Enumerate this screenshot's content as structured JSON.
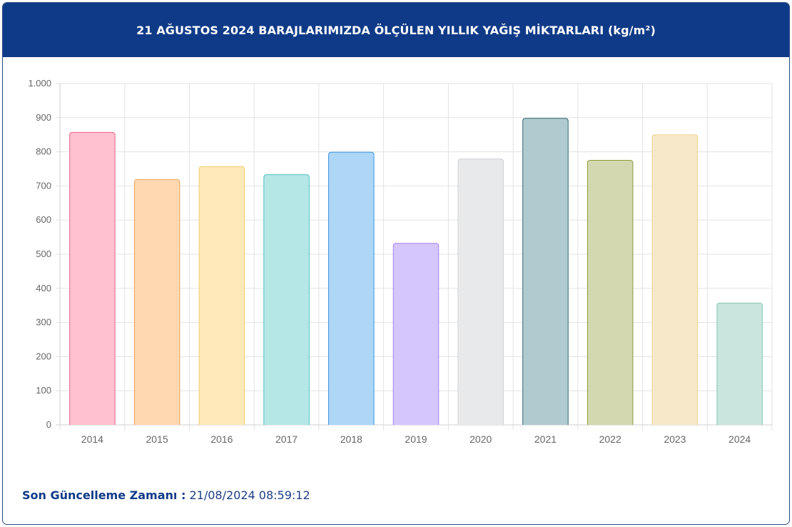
{
  "header": {
    "title": "21 AĞUSTOS 2024 BARAJLARIMIZDA ÖLÇÜLEN YILLIK YAĞIŞ MİKTARLARI (kg/m²)"
  },
  "footer": {
    "label": "Son Güncelleme Zamanı :",
    "value": "21/08/2024 08:59:12"
  },
  "chart_data": {
    "type": "bar",
    "title": "21 AĞUSTOS 2024 BARAJLARIMIZDA ÖLÇÜLEN YILLIK YAĞIŞ MİKTARLARI (kg/m²)",
    "categories": [
      "2014",
      "2015",
      "2016",
      "2017",
      "2018",
      "2019",
      "2020",
      "2021",
      "2022",
      "2023",
      "2024"
    ],
    "values": [
      857,
      719,
      757,
      733,
      799,
      532,
      779,
      898,
      775,
      850,
      357
    ],
    "ylim": [
      0,
      1000
    ],
    "yticks": [
      0,
      100,
      200,
      300,
      400,
      500,
      600,
      700,
      800,
      900,
      1000
    ],
    "ytick_labels": [
      "0",
      "100",
      "200",
      "300",
      "400",
      "500",
      "600",
      "700",
      "800",
      "900",
      "1.000"
    ],
    "grid": true,
    "legend": "none",
    "colors": {
      "fill": [
        "#ffc0cf",
        "#ffd7b0",
        "#ffe9bb",
        "#b6e7e7",
        "#aed6f7",
        "#d6c6fe",
        "#e8e9eb",
        "#b0cbd0",
        "#d4d8b0",
        "#f6e8c8",
        "#c9e5dd"
      ],
      "stroke": [
        "#e8638a",
        "#f3a558",
        "#f0cd6c",
        "#4fc1c1",
        "#3d94df",
        "#a583f5",
        "#cfd1d4",
        "#2e6870",
        "#8c9a36",
        "#f0d38b",
        "#86c6b3"
      ]
    }
  }
}
